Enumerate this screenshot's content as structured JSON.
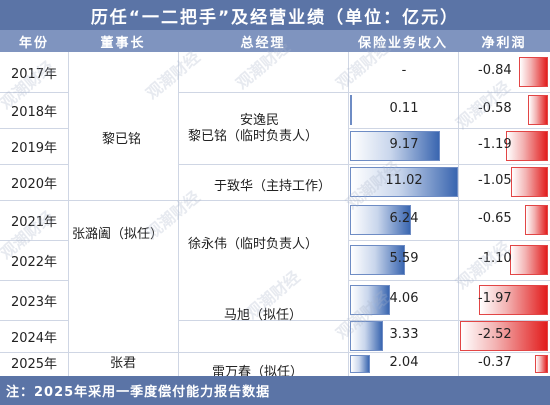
{
  "title": "历任“一二把手”及经营业绩（单位：亿元）",
  "headers": {
    "year": "年份",
    "chairman": "董事长",
    "gm": "总经理",
    "revenue": "保险业务收入",
    "net_profit": "净利润"
  },
  "rows": [
    {
      "year": "2017年",
      "revenue": "-",
      "revenue_value": null,
      "net_profit": "-0.84",
      "net_profit_value": -0.84
    },
    {
      "year": "2018年",
      "revenue": "0.11",
      "revenue_value": 0.11,
      "net_profit": "-0.58",
      "net_profit_value": -0.58
    },
    {
      "year": "2019年",
      "revenue": "9.17",
      "revenue_value": 9.17,
      "net_profit": "-1.19",
      "net_profit_value": -1.19
    },
    {
      "year": "2020年",
      "revenue": "11.02",
      "revenue_value": 11.02,
      "net_profit": "-1.05",
      "net_profit_value": -1.05
    },
    {
      "year": "2021年",
      "revenue": "6.24",
      "revenue_value": 6.24,
      "net_profit": "-0.65",
      "net_profit_value": -0.65
    },
    {
      "year": "2022年",
      "revenue": "5.59",
      "revenue_value": 5.59,
      "net_profit": "-1.10",
      "net_profit_value": -1.1
    },
    {
      "year": "2023年",
      "revenue": "4.06",
      "revenue_value": 4.06,
      "net_profit": "-1.97",
      "net_profit_value": -1.97
    },
    {
      "year": "2024年",
      "revenue": "3.33",
      "revenue_value": 3.33,
      "net_profit": "-2.52",
      "net_profit_value": -2.52
    },
    {
      "year": "2025年",
      "revenue": "2.04",
      "revenue_value": 2.04,
      "net_profit": "-0.37",
      "net_profit_value": -0.37
    }
  ],
  "chairmen": [
    "黎已铭",
    "张潞阖（拟任）",
    "张君"
  ],
  "gms": [
    "安逸民",
    "黎已铭（临时负责人）",
    "于致华（主持工作）",
    "徐永伟（临时负责人）",
    "马旭（拟任）",
    "雷万春（拟任）"
  ],
  "watermark": "观潮财经",
  "note": "注：2025年采用一季度偿付能力报告数据",
  "colors": {
    "title_bg": "#5b74a6",
    "header_bg": "#7f94bf",
    "revenue_bar": "#3a66b0",
    "profit_bar": "#e21d1d"
  }
}
